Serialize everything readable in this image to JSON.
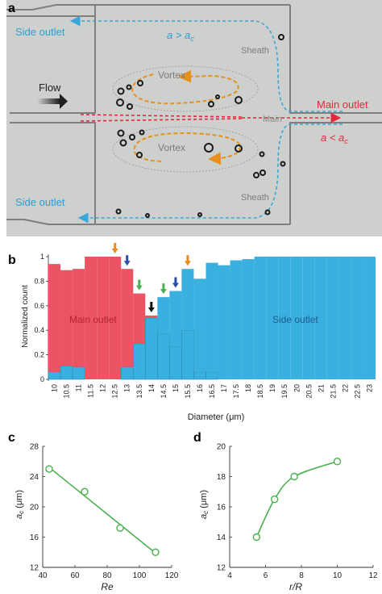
{
  "panels": {
    "a": {
      "letter": "a",
      "labels": {
        "side_outlet_top": "Side outlet",
        "side_outlet_bottom": "Side outlet",
        "a_gt": "a > a",
        "a_gt_sub": "c",
        "a_lt": "a < a",
        "a_lt_sub": "c",
        "flow": "Flow",
        "vortex_top": "Vortex",
        "vortex_bottom": "Vortex",
        "sheath_top": "Sheath",
        "sheath_bottom": "Sheath",
        "main": "Main",
        "main_outlet": "Main outlet"
      },
      "colors": {
        "background": "#cdd0cd",
        "channel_wall": "#7d7f7d",
        "side_path": "#3aa6d9",
        "main_path": "#e2283e",
        "vortex_arrow": "#e8901c",
        "flow_arrow": "#222222"
      }
    },
    "b": {
      "letter": "b"
    },
    "c": {
      "letter": "c"
    },
    "d": {
      "letter": "d"
    }
  },
  "chart_data": [
    {
      "panel": "b",
      "type": "bar",
      "stacked": true,
      "xlabel": "Diameter (μm)",
      "ylabel": "Normalized count",
      "ylim": [
        0,
        1
      ],
      "yticks": [
        "0",
        "0.2",
        "0.4",
        "0.6",
        "0.8",
        "1"
      ],
      "categories": [
        "10",
        "10.5",
        "11",
        "11.5",
        "12",
        "12.5",
        "13",
        "13.5",
        "14",
        "14.5",
        "15",
        "15.5",
        "16",
        "16.5",
        "17",
        "17.5",
        "18",
        "18.5",
        "19",
        "19.5",
        "20",
        "20.5",
        "21",
        "21.5",
        "22",
        "22.5",
        "23"
      ],
      "series": [
        {
          "name": "Side outlet",
          "color": "#3ab0e0",
          "values": [
            0.06,
            0.11,
            0.1,
            0,
            0,
            0,
            0.1,
            0.29,
            0.5,
            0.37,
            0.27,
            0.4,
            0.06,
            0.06,
            0,
            0,
            0,
            0,
            0,
            0,
            0,
            0,
            0,
            0,
            0,
            0,
            0
          ]
        },
        {
          "name": "Main outlet",
          "color": "#ec5363",
          "values": [
            0.88,
            0.78,
            0.8,
            1,
            1,
            1,
            0.8,
            0.41,
            0.02,
            0,
            0,
            0,
            0,
            0,
            0,
            0,
            0,
            0,
            0,
            0,
            0,
            0,
            0,
            0,
            0,
            0,
            0
          ]
        },
        {
          "name": "Side outlet (upper)",
          "color": "#3ab0e0",
          "values": [
            0,
            0,
            0,
            0,
            0,
            0,
            0,
            0,
            0,
            0.3,
            0.45,
            0.5,
            0.76,
            0.89,
            0.93,
            0.97,
            0.98,
            1,
            1,
            1,
            1,
            1,
            1,
            1,
            1,
            1,
            1
          ]
        }
      ],
      "region_labels": {
        "main": "Main outlet",
        "side": "Side outlet"
      },
      "markers": [
        {
          "x": "12.5",
          "color": "#e88a1e"
        },
        {
          "x": "13",
          "color": "#2b4da8"
        },
        {
          "x": "13.5",
          "color": "#4caf50"
        },
        {
          "x": "14",
          "color": "#111111"
        },
        {
          "x": "14.5",
          "color": "#4caf50"
        },
        {
          "x": "15",
          "color": "#2b4da8"
        },
        {
          "x": "15.5",
          "color": "#e88a1e"
        }
      ]
    },
    {
      "panel": "c",
      "type": "scatter",
      "xlabel": "Re",
      "ylabel": "a",
      "ylabel_sub": "c",
      "ylabel_unit": " (μm)",
      "xlim": [
        40,
        120
      ],
      "ylim": [
        12,
        28
      ],
      "xticks": [
        40,
        60,
        80,
        100,
        120
      ],
      "yticks": [
        12,
        16,
        20,
        24,
        28
      ],
      "x": [
        44,
        66,
        88,
        110
      ],
      "y": [
        25,
        22,
        17.2,
        14
      ],
      "color": "#4caf50"
    },
    {
      "panel": "d",
      "type": "scatter",
      "xlabel": "r/R",
      "ylabel": "a",
      "ylabel_sub": "c",
      "ylabel_unit": " (μm)",
      "xlim": [
        4,
        12
      ],
      "ylim": [
        12,
        20
      ],
      "xticks": [
        4,
        6,
        8,
        10,
        12
      ],
      "yticks": [
        12,
        14,
        16,
        18,
        20
      ],
      "x": [
        5.5,
        6.5,
        7.6,
        10
      ],
      "y": [
        14,
        16.5,
        18,
        19
      ],
      "color": "#4caf50"
    }
  ]
}
